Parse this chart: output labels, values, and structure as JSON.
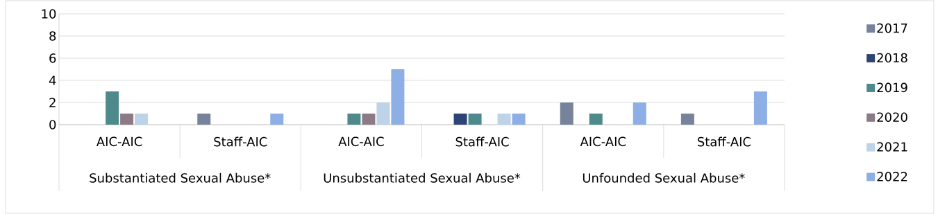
{
  "chart_data": {
    "type": "bar",
    "categories": [
      "AIC-AIC",
      "Staff-AIC",
      "AIC-AIC",
      "Staff-AIC",
      "AIC-AIC",
      "Staff-AIC"
    ],
    "annotations": [
      "Substantiated Sexual Abuse*",
      "Unsubstantiated Sexual Abuse*",
      "Unfounded Sexual Abuse*"
    ],
    "series": [
      {
        "name": "2017",
        "color": "#76839a",
        "values": [
          0,
          1,
          0,
          0,
          2,
          1
        ]
      },
      {
        "name": "2018",
        "color": "#2e4476",
        "values": [
          0,
          0,
          0,
          1,
          0,
          0
        ]
      },
      {
        "name": "2019",
        "color": "#4e8a8c",
        "values": [
          3,
          0,
          1,
          1,
          1,
          0
        ]
      },
      {
        "name": "2020",
        "color": "#8c7b86",
        "values": [
          1,
          0,
          1,
          0,
          0,
          0
        ]
      },
      {
        "name": "2021",
        "color": "#bdd3e8",
        "values": [
          1,
          0,
          2,
          1,
          0,
          0
        ]
      },
      {
        "name": "2022",
        "color": "#8eaee6",
        "values": [
          0,
          1,
          5,
          1,
          2,
          3
        ]
      }
    ],
    "ylim": [
      0,
      10
    ],
    "yticks": [
      0,
      2,
      4,
      6,
      8,
      10
    ],
    "grid": "y",
    "legend": "right"
  }
}
